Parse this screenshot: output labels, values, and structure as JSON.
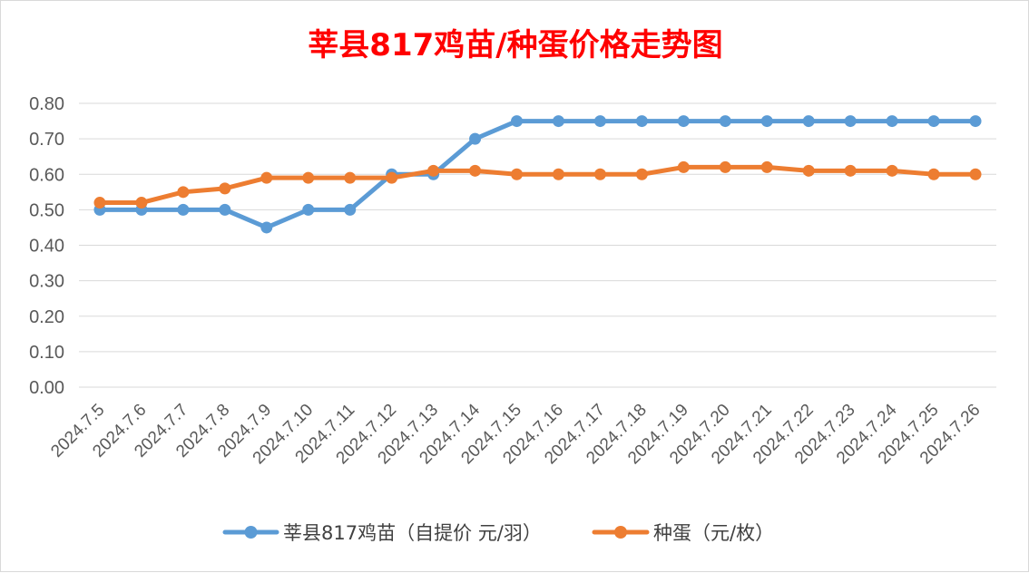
{
  "chart_data": {
    "type": "line",
    "title": "莘县817鸡苗/种蛋价格走势图",
    "xlabel": "",
    "ylabel": "",
    "categories": [
      "2024.7.5",
      "2024.7.6",
      "2024.7.7",
      "2024.7.8",
      "2024.7.9",
      "2024.7.10",
      "2024.7.11",
      "2024.7.12",
      "2024.7.13",
      "2024.7.14",
      "2024.7.15",
      "2024.7.16",
      "2024.7.17",
      "2024.7.18",
      "2024.7.19",
      "2024.7.20",
      "2024.7.21",
      "2024.7.22",
      "2024.7.23",
      "2024.7.24",
      "2024.7.25",
      "2024.7.26"
    ],
    "series": [
      {
        "name": "莘县817鸡苗（自提价 元/羽）",
        "color": "#5b9bd5",
        "values": [
          0.5,
          0.5,
          0.5,
          0.5,
          0.45,
          0.5,
          0.5,
          0.6,
          0.6,
          0.7,
          0.75,
          0.75,
          0.75,
          0.75,
          0.75,
          0.75,
          0.75,
          0.75,
          0.75,
          0.75,
          0.75,
          0.75
        ]
      },
      {
        "name": "种蛋（元/枚）",
        "color": "#ed7d31",
        "values": [
          0.52,
          0.52,
          0.55,
          0.56,
          0.59,
          0.59,
          0.59,
          0.59,
          0.61,
          0.61,
          0.6,
          0.6,
          0.6,
          0.6,
          0.62,
          0.62,
          0.62,
          0.61,
          0.61,
          0.61,
          0.6,
          0.6
        ]
      }
    ],
    "ylim": [
      0,
      0.8
    ],
    "yticks": [
      "0.00",
      "0.10",
      "0.20",
      "0.30",
      "0.40",
      "0.50",
      "0.60",
      "0.70",
      "0.80"
    ],
    "grid": true,
    "legend_position": "bottom",
    "title_color": "#ff0000"
  }
}
